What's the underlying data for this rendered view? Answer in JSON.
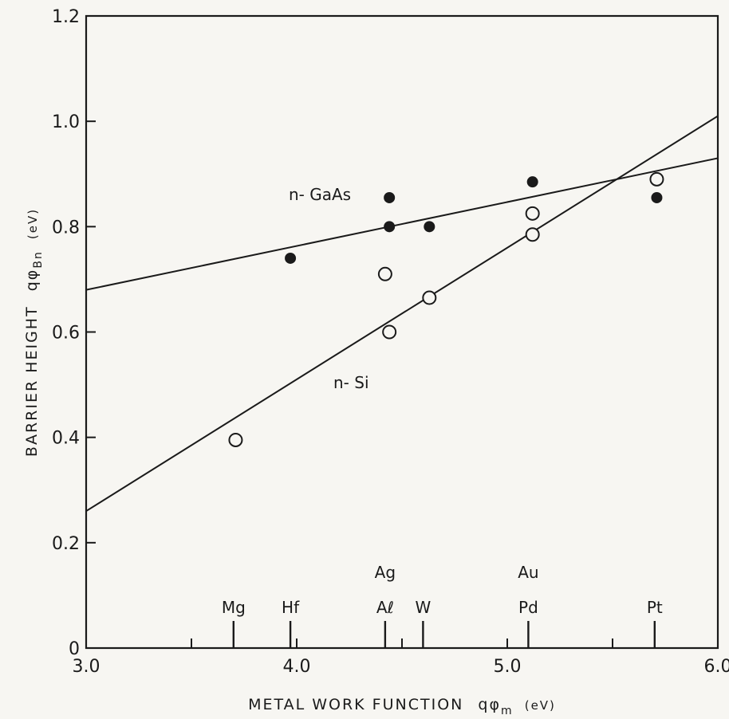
{
  "chart_data": {
    "type": "scatter",
    "xlabel": "METAL WORK FUNCTION",
    "xlabel_symbol": "qφ",
    "xlabel_sub": "m",
    "xlabel_unit": "(eV)",
    "ylabel": "BARRIER HEIGHT",
    "ylabel_symbol": "qφ",
    "ylabel_sub": "Bn",
    "ylabel_unit": "(eV)",
    "xlim": [
      3.0,
      6.0
    ],
    "ylim": [
      0,
      1.2
    ],
    "x_ticks": [
      {
        "value": 3.0,
        "label": "3.0"
      },
      {
        "value": 4.0,
        "label": "4.0"
      },
      {
        "value": 5.0,
        "label": "5.0"
      },
      {
        "value": 6.0,
        "label": "6.0"
      }
    ],
    "x_minor_ticks": [
      3.5,
      4.5,
      5.5
    ],
    "y_ticks": [
      {
        "value": 0,
        "label": "0"
      },
      {
        "value": 0.2,
        "label": "0.2"
      },
      {
        "value": 0.4,
        "label": "0.4"
      },
      {
        "value": 0.6,
        "label": "0.6"
      },
      {
        "value": 0.8,
        "label": "0.8"
      },
      {
        "value": 1.0,
        "label": "1.0"
      },
      {
        "value": 1.2,
        "label": "1.2"
      }
    ],
    "grid": false,
    "metal_markers": [
      {
        "x": 3.7,
        "label": "Mg"
      },
      {
        "x": 3.97,
        "label": "Hf"
      },
      {
        "x": 4.42,
        "label": "Aℓ",
        "label_upper": "Ag"
      },
      {
        "x": 4.6,
        "label": "W"
      },
      {
        "x": 5.1,
        "label": "Pd",
        "label_upper": "Au"
      },
      {
        "x": 5.7,
        "label": "Pt"
      }
    ],
    "series": [
      {
        "name": "n- GaAs",
        "marker": "filled",
        "points": [
          {
            "x": 3.97,
            "y": 0.74
          },
          {
            "x": 4.44,
            "y": 0.855
          },
          {
            "x": 4.44,
            "y": 0.8
          },
          {
            "x": 4.63,
            "y": 0.8
          },
          {
            "x": 5.12,
            "y": 0.885
          },
          {
            "x": 5.71,
            "y": 0.855
          }
        ],
        "fit_line": [
          [
            3.0,
            0.68
          ],
          [
            6.0,
            0.93
          ]
        ]
      },
      {
        "name": "n- Si",
        "marker": "open",
        "points": [
          {
            "x": 3.71,
            "y": 0.395
          },
          {
            "x": 4.42,
            "y": 0.71
          },
          {
            "x": 4.44,
            "y": 0.6
          },
          {
            "x": 4.63,
            "y": 0.665
          },
          {
            "x": 5.12,
            "y": 0.825
          },
          {
            "x": 5.12,
            "y": 0.785
          },
          {
            "x": 5.71,
            "y": 0.89
          }
        ],
        "fit_line": [
          [
            3.0,
            0.26
          ],
          [
            6.0,
            1.01
          ]
        ]
      }
    ]
  }
}
